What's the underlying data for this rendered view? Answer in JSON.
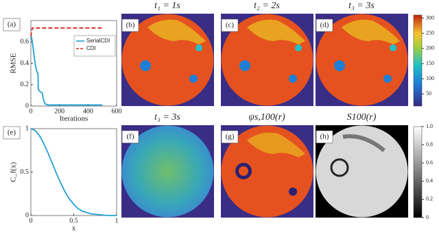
{
  "chart_data": [
    {
      "type": "line",
      "label": "(a)",
      "ylabel": "RMSE",
      "xlabel": "Iterations",
      "xlim": [
        0,
        600
      ],
      "xticks": [
        0,
        200,
        400,
        600
      ],
      "ylim": [
        0,
        0.8
      ],
      "yticks": [
        0,
        0.2,
        0.4,
        0.6
      ],
      "legend": "upper right",
      "series": [
        {
          "name": "SerialCDI",
          "color": "#1f9fd6",
          "dash": false,
          "x": [
            0,
            5,
            10,
            20,
            30,
            40,
            50,
            52,
            60,
            70,
            80,
            90,
            100,
            120,
            150,
            200,
            300,
            400,
            500
          ],
          "values": [
            0.66,
            0.64,
            0.6,
            0.5,
            0.4,
            0.33,
            0.3,
            0.16,
            0.14,
            0.13,
            0.12,
            0.05,
            0.02,
            0.01,
            0.01,
            0.01,
            0.01,
            0.01,
            0.01
          ]
        },
        {
          "name": "CDI",
          "color": "#d62728",
          "dash": true,
          "x": [
            0,
            10,
            500
          ],
          "values": [
            0.65,
            0.73,
            0.73
          ]
        }
      ]
    },
    {
      "type": "line",
      "label": "(e)",
      "ylabel": "C_f(x)",
      "xlabel": "x",
      "xlim": [
        0,
        1
      ],
      "xticks": [
        0,
        0.5,
        1
      ],
      "ylim": [
        0,
        1
      ],
      "yticks": [
        0,
        0.5,
        1
      ],
      "series": [
        {
          "color": "#1f9fd6",
          "dash": false,
          "x": [
            0,
            0.05,
            0.1,
            0.15,
            0.2,
            0.25,
            0.3,
            0.35,
            0.4,
            0.45,
            0.5,
            0.55,
            0.6,
            0.7,
            0.8,
            0.9,
            1
          ],
          "values": [
            1,
            0.98,
            0.92,
            0.83,
            0.72,
            0.6,
            0.48,
            0.37,
            0.27,
            0.19,
            0.13,
            0.08,
            0.05,
            0.02,
            0.01,
            0,
            0
          ]
        }
      ]
    }
  ],
  "panels": [
    {
      "label": "(b)",
      "title": "t₁ = 1s"
    },
    {
      "label": "(c)",
      "title": "t₂ = 2s"
    },
    {
      "label": "(d)",
      "title": "t₃ = 3s"
    },
    {
      "label": "(f)",
      "title": "t₃ = 3s"
    },
    {
      "label": "(g)",
      "title": "ψs,100(r)"
    },
    {
      "label": "(h)",
      "title": "S100(r)"
    }
  ],
  "colorbars": [
    {
      "ylim": [
        10,
        310
      ],
      "yticks": [
        50,
        100,
        150,
        200,
        250,
        300
      ]
    },
    {
      "ylim": [
        0,
        1
      ],
      "yticks": [
        0,
        0.2,
        0.4,
        0.6,
        0.8,
        {
          "value": 1,
          "label": "1.0"
        }
      ]
    }
  ]
}
